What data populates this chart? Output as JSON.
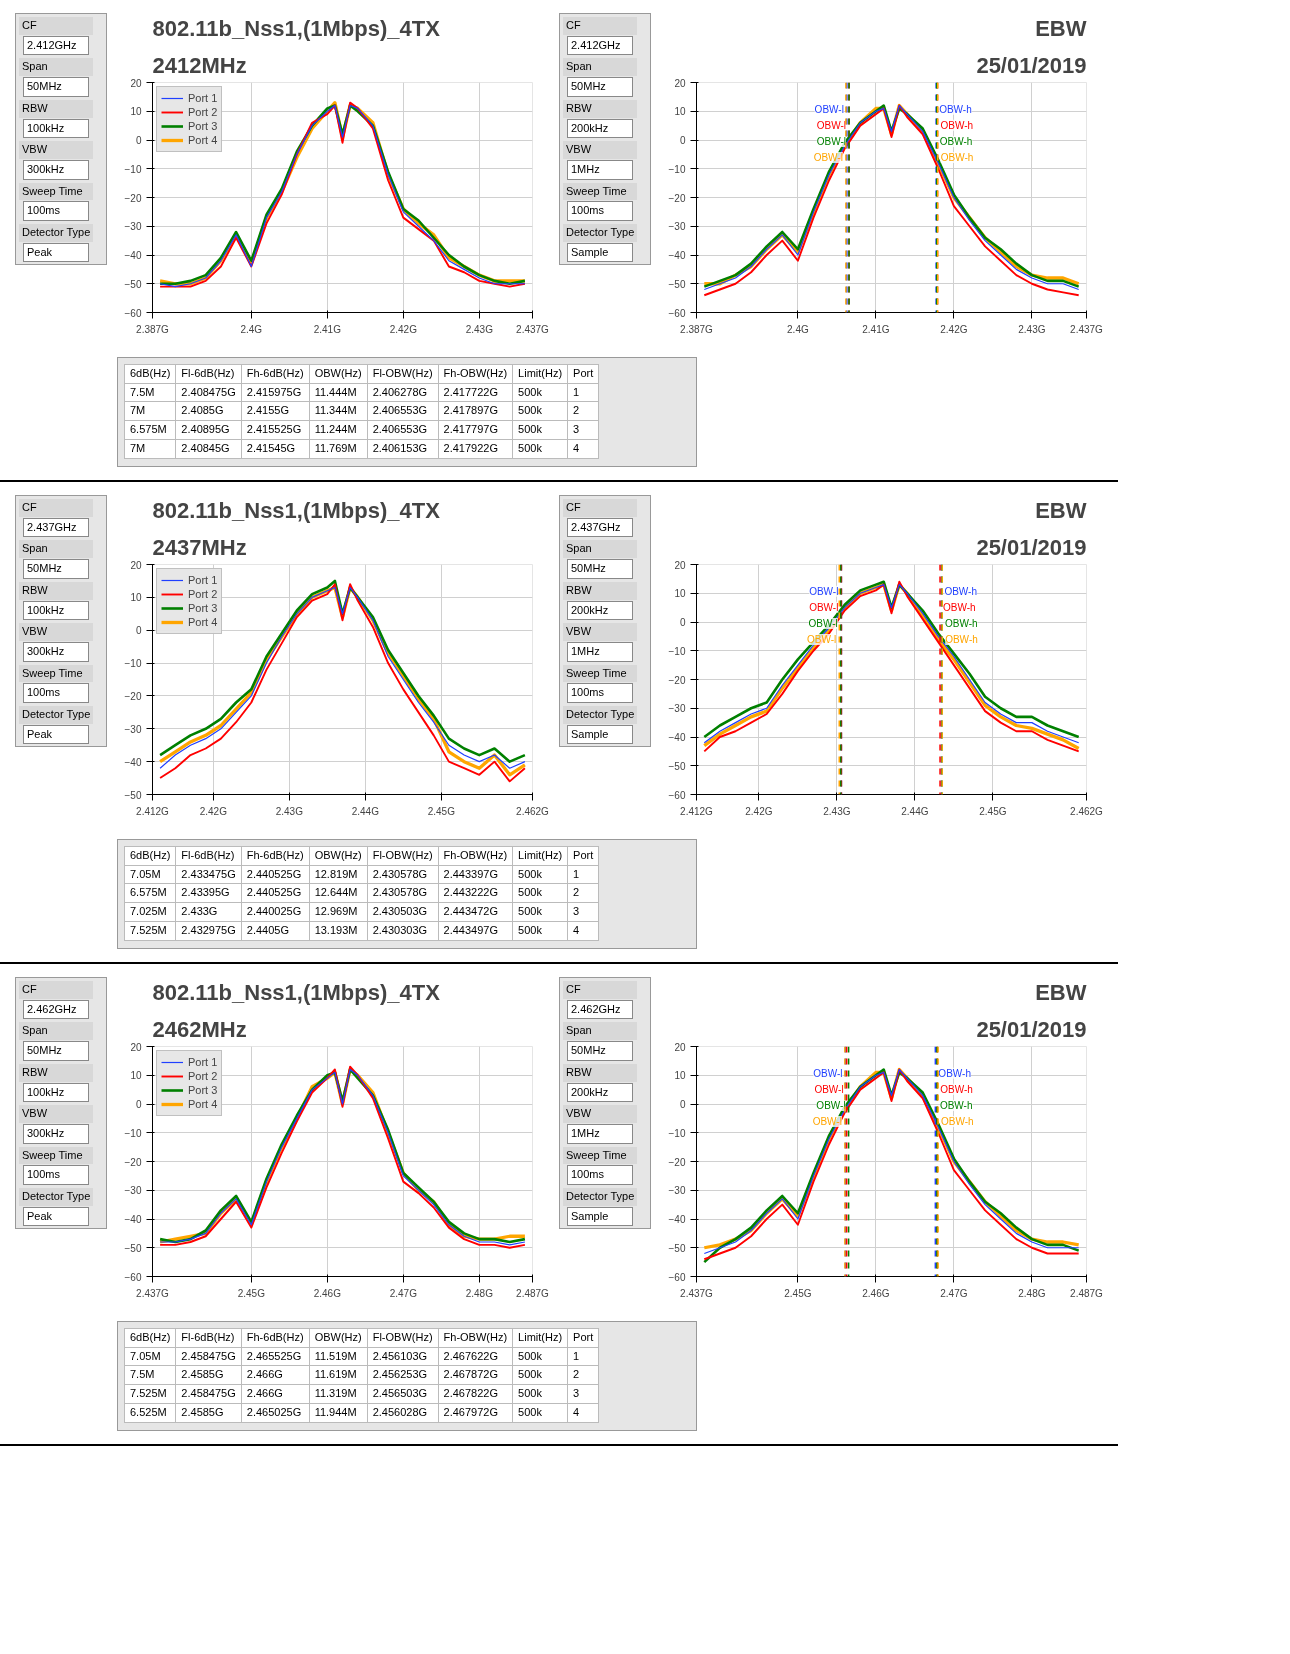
{
  "chart_data": [
    {
      "type": "line",
      "title": "802.11b_Nss1,(1Mbps)_4TX",
      "subtitle": "2412MHz",
      "grid": true,
      "legend": "top left",
      "line_style": "solid",
      "annotations": [
        "EBW",
        "25/01/2019",
        "CF",
        "2.412GHz",
        "Span",
        "50MHz",
        "RBW",
        "100kHz",
        "VBW",
        "300kHz",
        "Sweep Time",
        "100ms",
        "Detector Type",
        "Peak"
      ],
      "xlim": [
        2.387,
        2.437
      ],
      "xticks": [
        {
          "value": 2.387,
          "label": "2.387G"
        },
        {
          "value": 2.4,
          "label": "2.4G"
        },
        {
          "value": 2.41,
          "label": "2.41G"
        },
        {
          "value": 2.42,
          "label": "2.42G"
        },
        {
          "value": 2.43,
          "label": "2.43G"
        },
        {
          "value": 2.437,
          "label": "2.437G"
        }
      ],
      "ylim": [
        -60,
        20
      ],
      "yticks": [
        -60,
        -50,
        -40,
        -30,
        -20,
        -10,
        0,
        10,
        20
      ],
      "x": [
        2.388,
        2.39,
        2.392,
        2.394,
        2.396,
        2.398,
        2.4,
        2.402,
        2.404,
        2.406,
        2.408,
        2.41,
        2.411,
        2.412,
        2.413,
        2.414,
        2.416,
        2.418,
        2.42,
        2.422,
        2.424,
        2.426,
        2.428,
        2.43,
        2.432,
        2.434,
        2.436
      ],
      "series": [
        {
          "name": "Port 1",
          "color": "#1f3fff",
          "values": [
            -50,
            -51,
            -50,
            -48,
            -42,
            -33,
            -44,
            -27,
            -18,
            -5,
            5,
            10,
            12,
            1,
            12,
            11,
            5,
            -12,
            -25,
            -30,
            -35,
            -42,
            -45,
            -48,
            -50,
            -50,
            -50
          ]
        },
        {
          "name": "Port 2",
          "color": "#ff0000",
          "values": [
            -51,
            -51,
            -51,
            -49,
            -44,
            -34,
            -44,
            -29,
            -19,
            -5,
            6,
            9,
            12,
            -1,
            13,
            11,
            4,
            -14,
            -27,
            -31,
            -35,
            -44,
            -46,
            -49,
            -50,
            -51,
            -50
          ]
        },
        {
          "name": "Port 3",
          "color": "#008000",
          "values": [
            -50,
            -50,
            -49,
            -47,
            -41,
            -32,
            -42,
            -26,
            -17,
            -4,
            5,
            11,
            12,
            2,
            12,
            10,
            5,
            -11,
            -24,
            -28,
            -34,
            -40,
            -44,
            -47,
            -49,
            -50,
            -49
          ]
        },
        {
          "name": "Port 4",
          "color": "#ffa500",
          "values": [
            -49,
            -50,
            -50,
            -48,
            -42,
            -33,
            -43,
            -27,
            -18,
            -6,
            4,
            10,
            13,
            1,
            12,
            11,
            6,
            -12,
            -24,
            -29,
            -33,
            -41,
            -44,
            -47,
            -49,
            -49,
            -49
          ]
        }
      ]
    },
    {
      "type": "line",
      "grid": true,
      "line_style": "solid",
      "annotations": [
        "CF",
        "2.412GHz",
        "Span",
        "50MHz",
        "RBW",
        "200kHz",
        "VBW",
        "1MHz",
        "Sweep Time",
        "100ms",
        "Detector Type",
        "Sample",
        "6dB(Hz)",
        "Fl-6dB(Hz)",
        "Fh-6dB(Hz)",
        "OBW(Hz)",
        "Fl-OBW(Hz)",
        "Fh-OBW(Hz)",
        "Limit(Hz)",
        "Port",
        "7.5M",
        "2.408475G",
        "2.415975G",
        "11.444M",
        "2.406278G",
        "2.417722G",
        "500k",
        "1",
        "7M",
        "2.4085G",
        "2.4155G",
        "11.344M",
        "2.406553G",
        "2.417897G",
        "500k",
        "2",
        "6.575M",
        "2.40895G",
        "2.415525G",
        "11.244M",
        "2.406553G",
        "2.417797G",
        "500k",
        "3",
        "7M",
        "2.40845G",
        "2.41545G",
        "11.769M",
        "2.406153G",
        "2.417922G",
        "500k",
        "4"
      ],
      "xlim": [
        2.387,
        2.437
      ],
      "xticks": [
        {
          "value": 2.387,
          "label": "2.387G"
        },
        {
          "value": 2.4,
          "label": "2.4G"
        },
        {
          "value": 2.41,
          "label": "2.41G"
        },
        {
          "value": 2.42,
          "label": "2.42G"
        },
        {
          "value": 2.43,
          "label": "2.43G"
        },
        {
          "value": 2.437,
          "label": "2.437G"
        }
      ],
      "ylim": [
        -60,
        20
      ],
      "yticks": [
        -60,
        -50,
        -40,
        -30,
        -20,
        -10,
        0,
        10,
        20
      ],
      "x": [
        2.388,
        2.39,
        2.392,
        2.394,
        2.396,
        2.398,
        2.4,
        2.402,
        2.404,
        2.406,
        2.408,
        2.41,
        2.411,
        2.412,
        2.413,
        2.414,
        2.416,
        2.418,
        2.42,
        2.422,
        2.424,
        2.426,
        2.428,
        2.43,
        2.432,
        2.434,
        2.436
      ],
      "series": [
        {
          "color": "#1f3fff",
          "values": [
            -52,
            -50,
            -48,
            -44,
            -38,
            -33,
            -40,
            -25,
            -12,
            -2,
            6,
            10,
            11,
            3,
            12,
            9,
            3,
            -8,
            -20,
            -28,
            -35,
            -40,
            -45,
            -48,
            -50,
            -50,
            -52
          ]
        },
        {
          "color": "#ff0000",
          "values": [
            -54,
            -52,
            -50,
            -46,
            -40,
            -35,
            -42,
            -27,
            -14,
            -3,
            5,
            9,
            11,
            1,
            12,
            8,
            2,
            -10,
            -23,
            -30,
            -37,
            -42,
            -47,
            -50,
            -52,
            -53,
            -54
          ]
        },
        {
          "color": "#008000",
          "values": [
            -51,
            -49,
            -47,
            -43,
            -37,
            -32,
            -38,
            -24,
            -11,
            -1,
            6,
            10,
            12,
            3,
            11,
            9,
            4,
            -7,
            -19,
            -27,
            -34,
            -38,
            -43,
            -47,
            -49,
            -49,
            -51
          ]
        },
        {
          "color": "#ffa500",
          "values": [
            -50,
            -50,
            -47,
            -44,
            -38,
            -33,
            -39,
            -25,
            -12,
            -2,
            6,
            11,
            11,
            2,
            12,
            9,
            3,
            -8,
            -20,
            -27,
            -34,
            -39,
            -44,
            -47,
            -48,
            -48,
            -50
          ]
        }
      ],
      "ref_lines": [
        {
          "axis": "x",
          "value": 2.406278,
          "label": "OBW-l",
          "color": "#1f3fff",
          "line_style": "dashed"
        },
        {
          "axis": "x",
          "value": 2.417722,
          "label": "OBW-h",
          "color": "#1f3fff",
          "line_style": "dashed"
        },
        {
          "axis": "x",
          "value": 2.406553,
          "label": "OBW-l",
          "color": "#ff0000",
          "line_style": "dashed"
        },
        {
          "axis": "x",
          "value": 2.417897,
          "label": "OBW-h",
          "color": "#ff0000",
          "line_style": "dashed"
        },
        {
          "axis": "x",
          "value": 2.406553,
          "label": "OBW-l",
          "color": "#008000",
          "line_style": "dashed"
        },
        {
          "axis": "x",
          "value": 2.417797,
          "label": "OBW-h",
          "color": "#008000",
          "line_style": "dashed"
        },
        {
          "axis": "x",
          "value": 2.406153,
          "label": "OBW-l",
          "color": "#ffa500",
          "line_style": "dashed"
        },
        {
          "axis": "x",
          "value": 2.417922,
          "label": "OBW-h",
          "color": "#ffa500",
          "line_style": "dashed"
        }
      ]
    },
    {
      "type": "line",
      "title": "802.11b_Nss1,(1Mbps)_4TX",
      "subtitle": "2437MHz",
      "grid": true,
      "legend": "top left",
      "line_style": "solid",
      "annotations": [
        "EBW",
        "25/01/2019",
        "CF",
        "2.437GHz",
        "Span",
        "50MHz",
        "RBW",
        "100kHz",
        "VBW",
        "300kHz",
        "Sweep Time",
        "100ms",
        "Detector Type",
        "Peak"
      ],
      "xlim": [
        2.412,
        2.462
      ],
      "xticks": [
        {
          "value": 2.412,
          "label": "2.412G"
        },
        {
          "value": 2.42,
          "label": "2.42G"
        },
        {
          "value": 2.43,
          "label": "2.43G"
        },
        {
          "value": 2.44,
          "label": "2.44G"
        },
        {
          "value": 2.45,
          "label": "2.45G"
        },
        {
          "value": 2.462,
          "label": "2.462G"
        }
      ],
      "ylim": [
        -50,
        20
      ],
      "yticks": [
        -50,
        -40,
        -30,
        -20,
        -10,
        0,
        10,
        20
      ],
      "x": [
        2.413,
        2.415,
        2.417,
        2.419,
        2.421,
        2.423,
        2.425,
        2.427,
        2.429,
        2.431,
        2.433,
        2.435,
        2.436,
        2.437,
        2.438,
        2.439,
        2.441,
        2.443,
        2.445,
        2.447,
        2.449,
        2.451,
        2.453,
        2.455,
        2.457,
        2.459,
        2.461
      ],
      "series": [
        {
          "name": "Port 1",
          "color": "#1f3fff",
          "values": [
            -42,
            -38,
            -35,
            -33,
            -30,
            -25,
            -20,
            -10,
            -2,
            5,
            10,
            12,
            13,
            5,
            13,
            10,
            3,
            -8,
            -15,
            -22,
            -28,
            -35,
            -38,
            -40,
            -38,
            -42,
            -40
          ]
        },
        {
          "name": "Port 2",
          "color": "#ff0000",
          "values": [
            -45,
            -42,
            -38,
            -36,
            -33,
            -28,
            -22,
            -12,
            -4,
            4,
            9,
            11,
            14,
            3,
            14,
            9,
            1,
            -10,
            -18,
            -25,
            -32,
            -40,
            -42,
            -44,
            -40,
            -46,
            -42
          ]
        },
        {
          "name": "Port 3",
          "color": "#008000",
          "values": [
            -38,
            -35,
            -32,
            -30,
            -27,
            -22,
            -18,
            -8,
            -1,
            6,
            11,
            13,
            15,
            5,
            13,
            10,
            4,
            -6,
            -13,
            -20,
            -26,
            -33,
            -36,
            -38,
            -36,
            -40,
            -38
          ]
        },
        {
          "name": "Port 4",
          "color": "#ffa500",
          "values": [
            -40,
            -37,
            -34,
            -32,
            -29,
            -24,
            -19,
            -9,
            -2,
            5,
            10,
            12,
            13,
            4,
            13,
            10,
            3,
            -7,
            -14,
            -21,
            -27,
            -37,
            -40,
            -42,
            -38,
            -44,
            -41
          ]
        }
      ]
    },
    {
      "type": "line",
      "grid": true,
      "line_style": "solid",
      "annotations": [
        "CF",
        "2.437GHz",
        "Span",
        "50MHz",
        "RBW",
        "200kHz",
        "VBW",
        "1MHz",
        "Sweep Time",
        "100ms",
        "Detector Type",
        "Sample",
        "6dB(Hz)",
        "Fl-6dB(Hz)",
        "Fh-6dB(Hz)",
        "OBW(Hz)",
        "Fl-OBW(Hz)",
        "Fh-OBW(Hz)",
        "Limit(Hz)",
        "Port",
        "7.05M",
        "2.433475G",
        "2.440525G",
        "12.819M",
        "2.430578G",
        "2.443397G",
        "500k",
        "1",
        "6.575M",
        "2.43395G",
        "2.440525G",
        "12.644M",
        "2.430578G",
        "2.443222G",
        "500k",
        "2",
        "7.025M",
        "2.433G",
        "2.440025G",
        "12.969M",
        "2.430503G",
        "2.443472G",
        "500k",
        "3",
        "7.525M",
        "2.432975G",
        "2.4405G",
        "13.193M",
        "2.430303G",
        "2.443497G",
        "500k",
        "4"
      ],
      "xlim": [
        2.412,
        2.462
      ],
      "xticks": [
        {
          "value": 2.412,
          "label": "2.412G"
        },
        {
          "value": 2.42,
          "label": "2.42G"
        },
        {
          "value": 2.43,
          "label": "2.43G"
        },
        {
          "value": 2.44,
          "label": "2.44G"
        },
        {
          "value": 2.45,
          "label": "2.45G"
        },
        {
          "value": 2.462,
          "label": "2.462G"
        }
      ],
      "ylim": [
        -60,
        20
      ],
      "yticks": [
        -60,
        -50,
        -40,
        -30,
        -20,
        -10,
        0,
        10,
        20
      ],
      "x": [
        2.413,
        2.415,
        2.417,
        2.419,
        2.421,
        2.423,
        2.425,
        2.427,
        2.429,
        2.431,
        2.433,
        2.435,
        2.436,
        2.437,
        2.438,
        2.439,
        2.441,
        2.443,
        2.445,
        2.447,
        2.449,
        2.451,
        2.453,
        2.455,
        2.457,
        2.459,
        2.461
      ],
      "series": [
        {
          "color": "#1f3fff",
          "values": [
            -42,
            -38,
            -35,
            -32,
            -30,
            -22,
            -15,
            -8,
            -2,
            5,
            10,
            12,
            13,
            5,
            13,
            10,
            3,
            -5,
            -12,
            -20,
            -28,
            -32,
            -35,
            -35,
            -38,
            -40,
            -42
          ]
        },
        {
          "color": "#ff0000",
          "values": [
            -45,
            -40,
            -38,
            -35,
            -32,
            -25,
            -17,
            -10,
            -4,
            4,
            9,
            11,
            13,
            3,
            14,
            9,
            1,
            -7,
            -15,
            -23,
            -31,
            -35,
            -38,
            -38,
            -41,
            -43,
            -45
          ]
        },
        {
          "color": "#008000",
          "values": [
            -40,
            -36,
            -33,
            -30,
            -28,
            -20,
            -13,
            -7,
            -1,
            6,
            11,
            13,
            14,
            5,
            13,
            10,
            4,
            -4,
            -11,
            -18,
            -26,
            -30,
            -33,
            -33,
            -36,
            -38,
            -40
          ]
        },
        {
          "color": "#ffa500",
          "values": [
            -43,
            -39,
            -36,
            -33,
            -31,
            -23,
            -16,
            -9,
            -3,
            5,
            10,
            12,
            13,
            4,
            13,
            10,
            2,
            -6,
            -13,
            -21,
            -29,
            -33,
            -36,
            -37,
            -39,
            -41,
            -44
          ]
        }
      ],
      "ref_lines": [
        {
          "axis": "x",
          "value": 2.430578,
          "label": "OBW-l",
          "color": "#1f3fff",
          "line_style": "dashed"
        },
        {
          "axis": "x",
          "value": 2.443397,
          "label": "OBW-h",
          "color": "#1f3fff",
          "line_style": "dashed"
        },
        {
          "axis": "x",
          "value": 2.430578,
          "label": "OBW-l",
          "color": "#ff0000",
          "line_style": "dashed"
        },
        {
          "axis": "x",
          "value": 2.443222,
          "label": "OBW-h",
          "color": "#ff0000",
          "line_style": "dashed"
        },
        {
          "axis": "x",
          "value": 2.430503,
          "label": "OBW-l",
          "color": "#008000",
          "line_style": "dashed"
        },
        {
          "axis": "x",
          "value": 2.443472,
          "label": "OBW-h",
          "color": "#008000",
          "line_style": "dashed"
        },
        {
          "axis": "x",
          "value": 2.430303,
          "label": "OBW-l",
          "color": "#ffa500",
          "line_style": "dashed"
        },
        {
          "axis": "x",
          "value": 2.443497,
          "label": "OBW-h",
          "color": "#ffa500",
          "line_style": "dashed"
        }
      ]
    },
    {
      "type": "line",
      "title": "802.11b_Nss1,(1Mbps)_4TX",
      "subtitle": "2462MHz",
      "grid": true,
      "legend": "top left",
      "line_style": "solid",
      "annotations": [
        "EBW",
        "25/01/2019",
        "CF",
        "2.462GHz",
        "Span",
        "50MHz",
        "RBW",
        "100kHz",
        "VBW",
        "300kHz",
        "Sweep Time",
        "100ms",
        "Detector Type",
        "Peak"
      ],
      "xlim": [
        2.437,
        2.487
      ],
      "xticks": [
        {
          "value": 2.437,
          "label": "2.437G"
        },
        {
          "value": 2.45,
          "label": "2.45G"
        },
        {
          "value": 2.46,
          "label": "2.46G"
        },
        {
          "value": 2.47,
          "label": "2.47G"
        },
        {
          "value": 2.48,
          "label": "2.48G"
        },
        {
          "value": 2.487,
          "label": "2.487G"
        }
      ],
      "ylim": [
        -60,
        20
      ],
      "yticks": [
        -60,
        -50,
        -40,
        -30,
        -20,
        -10,
        0,
        10,
        20
      ],
      "x": [
        2.438,
        2.44,
        2.442,
        2.444,
        2.446,
        2.448,
        2.45,
        2.452,
        2.454,
        2.456,
        2.458,
        2.46,
        2.461,
        2.462,
        2.463,
        2.464,
        2.466,
        2.468,
        2.47,
        2.472,
        2.474,
        2.476,
        2.478,
        2.48,
        2.482,
        2.484,
        2.486
      ],
      "series": [
        {
          "name": "Port 1",
          "color": "#1f3fff",
          "values": [
            -48,
            -48,
            -47,
            -45,
            -38,
            -33,
            -42,
            -27,
            -15,
            -5,
            5,
            9,
            11,
            0,
            12,
            10,
            3,
            -10,
            -25,
            -30,
            -35,
            -42,
            -46,
            -48,
            -48,
            -49,
            -48
          ]
        },
        {
          "name": "Port 2",
          "color": "#ff0000",
          "values": [
            -49,
            -49,
            -48,
            -46,
            -40,
            -34,
            -43,
            -29,
            -17,
            -6,
            4,
            9,
            12,
            -1,
            13,
            10,
            2,
            -12,
            -27,
            -31,
            -36,
            -43,
            -47,
            -49,
            -49,
            -50,
            -49
          ]
        },
        {
          "name": "Port 3",
          "color": "#008000",
          "values": [
            -47,
            -48,
            -47,
            -44,
            -37,
            -32,
            -41,
            -26,
            -14,
            -4,
            5,
            10,
            11,
            1,
            12,
            9,
            3,
            -9,
            -24,
            -29,
            -34,
            -41,
            -45,
            -47,
            -47,
            -48,
            -47
          ]
        },
        {
          "name": "Port 4",
          "color": "#ffa500",
          "values": [
            -48,
            -47,
            -46,
            -45,
            -38,
            -33,
            -42,
            -27,
            -15,
            -5,
            6,
            9,
            11,
            0,
            12,
            10,
            4,
            -10,
            -24,
            -30,
            -34,
            -42,
            -46,
            -47,
            -47,
            -46,
            -46
          ]
        }
      ]
    },
    {
      "type": "line",
      "grid": true,
      "line_style": "solid",
      "annotations": [
        "CF",
        "2.462GHz",
        "Span",
        "50MHz",
        "RBW",
        "200kHz",
        "VBW",
        "1MHz",
        "Sweep Time",
        "100ms",
        "Detector Type",
        "Sample",
        "6dB(Hz)",
        "Fl-6dB(Hz)",
        "Fh-6dB(Hz)",
        "OBW(Hz)",
        "Fl-OBW(Hz)",
        "Fh-OBW(Hz)",
        "Limit(Hz)",
        "Port",
        "7.05M",
        "2.458475G",
        "2.465525G",
        "11.519M",
        "2.456103G",
        "2.467622G",
        "500k",
        "1",
        "7.5M",
        "2.4585G",
        "2.466G",
        "11.619M",
        "2.456253G",
        "2.467872G",
        "500k",
        "2",
        "7.525M",
        "2.458475G",
        "2.466G",
        "11.319M",
        "2.456503G",
        "2.467822G",
        "500k",
        "3",
        "6.525M",
        "2.4585G",
        "2.465025G",
        "11.944M",
        "2.456028G",
        "2.467972G",
        "500k",
        "4"
      ],
      "xlim": [
        2.437,
        2.487
      ],
      "xticks": [
        {
          "value": 2.437,
          "label": "2.437G"
        },
        {
          "value": 2.45,
          "label": "2.45G"
        },
        {
          "value": 2.46,
          "label": "2.46G"
        },
        {
          "value": 2.47,
          "label": "2.47G"
        },
        {
          "value": 2.48,
          "label": "2.48G"
        },
        {
          "value": 2.487,
          "label": "2.487G"
        }
      ],
      "ylim": [
        -60,
        20
      ],
      "yticks": [
        -60,
        -50,
        -40,
        -30,
        -20,
        -10,
        0,
        10,
        20
      ],
      "x": [
        2.438,
        2.44,
        2.442,
        2.444,
        2.446,
        2.448,
        2.45,
        2.452,
        2.454,
        2.456,
        2.458,
        2.46,
        2.461,
        2.462,
        2.463,
        2.464,
        2.466,
        2.468,
        2.47,
        2.472,
        2.474,
        2.476,
        2.478,
        2.48,
        2.482,
        2.484,
        2.486
      ],
      "series": [
        {
          "color": "#1f3fff",
          "values": [
            -52,
            -50,
            -48,
            -44,
            -38,
            -33,
            -40,
            -25,
            -12,
            -2,
            6,
            10,
            11,
            3,
            12,
            9,
            3,
            -8,
            -20,
            -28,
            -35,
            -40,
            -45,
            -48,
            -50,
            -50,
            -50
          ]
        },
        {
          "color": "#ff0000",
          "values": [
            -54,
            -52,
            -50,
            -46,
            -40,
            -35,
            -42,
            -27,
            -14,
            -3,
            5,
            9,
            11,
            1,
            12,
            8,
            2,
            -10,
            -23,
            -30,
            -37,
            -42,
            -47,
            -50,
            -52,
            -52,
            -52
          ]
        },
        {
          "color": "#008000",
          "values": [
            -55,
            -50,
            -47,
            -43,
            -37,
            -32,
            -38,
            -24,
            -11,
            -1,
            6,
            10,
            12,
            3,
            11,
            9,
            4,
            -7,
            -19,
            -27,
            -34,
            -38,
            -43,
            -47,
            -49,
            -49,
            -51
          ]
        },
        {
          "color": "#ffa500",
          "values": [
            -50,
            -49,
            -47,
            -44,
            -38,
            -33,
            -39,
            -25,
            -12,
            -2,
            6,
            11,
            11,
            2,
            12,
            9,
            3,
            -8,
            -20,
            -27,
            -34,
            -39,
            -44,
            -47,
            -48,
            -48,
            -49
          ]
        }
      ],
      "ref_lines": [
        {
          "axis": "x",
          "value": 2.456103,
          "label": "OBW-l",
          "color": "#1f3fff",
          "line_style": "dashed"
        },
        {
          "axis": "x",
          "value": 2.467622,
          "label": "OBW-h",
          "color": "#1f3fff",
          "line_style": "dashed"
        },
        {
          "axis": "x",
          "value": 2.456253,
          "label": "OBW-l",
          "color": "#ff0000",
          "line_style": "dashed"
        },
        {
          "axis": "x",
          "value": 2.467872,
          "label": "OBW-h",
          "color": "#ff0000",
          "line_style": "dashed"
        },
        {
          "axis": "x",
          "value": 2.456503,
          "label": "OBW-l",
          "color": "#008000",
          "line_style": "dashed"
        },
        {
          "axis": "x",
          "value": 2.467822,
          "label": "OBW-h",
          "color": "#008000",
          "line_style": "dashed"
        },
        {
          "axis": "x",
          "value": 2.456028,
          "label": "OBW-l",
          "color": "#ffa500",
          "line_style": "dashed"
        },
        {
          "axis": "x",
          "value": 2.467972,
          "label": "OBW-h",
          "color": "#ffa500",
          "line_style": "dashed"
        }
      ]
    }
  ]
}
